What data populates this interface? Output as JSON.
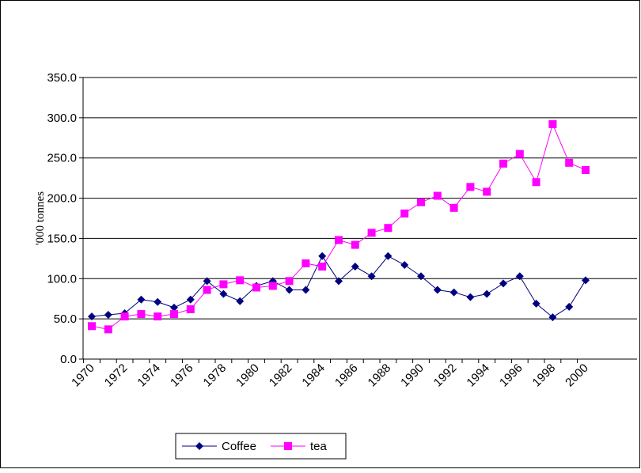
{
  "chart_data": {
    "type": "line",
    "y_label": "'000 tonnes",
    "categories": [
      "1970",
      null,
      "1972",
      null,
      "1974",
      null,
      "1976",
      null,
      "1978",
      null,
      "1980",
      null,
      "1982",
      null,
      "1984",
      null,
      "1986",
      null,
      "1988",
      null,
      "1990",
      null,
      "1992",
      null,
      "1994",
      null,
      "1996",
      null,
      "1998",
      null,
      "2000"
    ],
    "series": [
      {
        "name": "Coffee",
        "color": "#000080",
        "marker": "diamond",
        "values": [
          53,
          55,
          57,
          74,
          71,
          64,
          74,
          97,
          81,
          72,
          91,
          97,
          86,
          86,
          128,
          97,
          115,
          103,
          128,
          117,
          103,
          86,
          83,
          77,
          81,
          94,
          103,
          69,
          52,
          65,
          98
        ]
      },
      {
        "name": "tea",
        "color": "#ff00ff",
        "marker": "square",
        "values": [
          41,
          37,
          53,
          56,
          53,
          56,
          62,
          86,
          93,
          98,
          89,
          91,
          97,
          119,
          115,
          148,
          142,
          157,
          163,
          181,
          195,
          203,
          188,
          214,
          208,
          243,
          255,
          220,
          292,
          244,
          235
        ]
      }
    ],
    "ylim": [
      0,
      350
    ],
    "yticks": [
      {
        "value": 0,
        "label": "0.0"
      },
      {
        "value": 50,
        "label": "50.0"
      },
      {
        "value": 100,
        "label": "100.0"
      },
      {
        "value": 150,
        "label": "150.0"
      },
      {
        "value": 200,
        "label": "200.0"
      },
      {
        "value": 250,
        "label": "250.0"
      },
      {
        "value": 300,
        "label": "300.0"
      },
      {
        "value": 350,
        "label": "350.0"
      }
    ],
    "grid": true,
    "legend": "bottom"
  }
}
